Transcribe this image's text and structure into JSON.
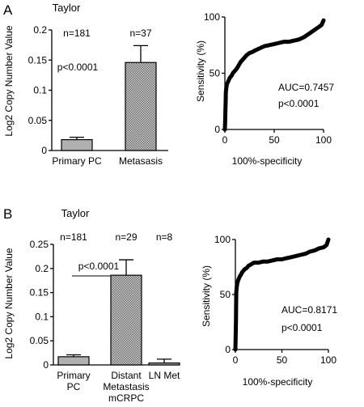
{
  "panel_a": {
    "label": "A",
    "title": "Taylor",
    "bar_chart": {
      "type": "bar",
      "categories": [
        "Primary PC",
        "Metasasis"
      ],
      "category_lines": [
        [
          "Primary PC"
        ],
        [
          "Metasasis"
        ]
      ],
      "values": [
        0.018,
        0.146
      ],
      "errors": [
        0.004,
        0.028
      ],
      "counts": [
        "n=181",
        "n=37"
      ],
      "pvalue": "p<0.0001",
      "ylabel": "Log2 Copy Number Value",
      "ylim": [
        0,
        0.2
      ],
      "yticks": [
        "0",
        "0.05",
        "0.1",
        "0.15",
        "0.2"
      ],
      "ytick_values": [
        0,
        0.05,
        0.1,
        0.15,
        0.2
      ],
      "colors": [
        "#b0b0b0",
        "#9a9a9a"
      ]
    },
    "roc_chart": {
      "type": "line",
      "xlabel": "100%-specificity",
      "ylabel": "Sensitivity (%)",
      "xlim": [
        0,
        100
      ],
      "ylim": [
        0,
        100
      ],
      "xticks": [
        "0",
        "50",
        "100"
      ],
      "xtick_values": [
        0,
        50,
        100
      ],
      "yticks": [
        "0",
        "50",
        "100"
      ],
      "ytick_values": [
        0,
        50,
        100
      ],
      "auc": "AUC=0.7457",
      "pvalue": "p<0.0001",
      "x": [
        0,
        0.3,
        0.6,
        0.8,
        1,
        1.5,
        2,
        3,
        4,
        5,
        6,
        7,
        8,
        9,
        10,
        12,
        14,
        16,
        18,
        20,
        22,
        25,
        28,
        30,
        35,
        40,
        45,
        50,
        55,
        60,
        65,
        70,
        75,
        80,
        85,
        90,
        95,
        98,
        100
      ],
      "y": [
        0,
        8,
        18,
        25,
        33,
        37,
        40,
        42,
        44,
        46,
        47,
        48,
        50,
        51,
        52,
        54,
        57,
        60,
        62,
        64,
        66,
        68,
        69,
        70,
        72,
        74,
        75,
        76,
        77,
        78,
        78,
        79,
        80,
        82,
        85,
        88,
        91,
        93,
        97
      ]
    }
  },
  "panel_b": {
    "label": "B",
    "title": "Taylor",
    "bar_chart": {
      "type": "bar",
      "categories": [
        "Primary PC",
        "Distant Metastasis mCRPC",
        "LN Met"
      ],
      "category_lines": [
        [
          "Primary",
          "PC"
        ],
        [
          "Distant",
          "Metastasis",
          "mCRPC"
        ],
        [
          "LN Met"
        ]
      ],
      "values": [
        0.017,
        0.186,
        0.004
      ],
      "errors": [
        0.004,
        0.032,
        0.008
      ],
      "counts": [
        "n=181",
        "n=29",
        "n=8"
      ],
      "pvalue": "p<0.0001",
      "ylabel": "Log2 Copy Number Value",
      "ylim": [
        0,
        0.25
      ],
      "yticks": [
        "0",
        "0.05",
        "0.1",
        "0.15",
        "0.2",
        "0.25"
      ],
      "ytick_values": [
        0,
        0.05,
        0.1,
        0.15,
        0.2,
        0.25
      ],
      "colors": [
        "#b0b0b0",
        "#9a9a9a",
        "#b0b0b0"
      ]
    },
    "roc_chart": {
      "type": "line",
      "xlabel": "100%-specificity",
      "ylabel": "Sensitivity (%)",
      "xlim": [
        0,
        100
      ],
      "ylim": [
        0,
        100
      ],
      "xticks": [
        "0",
        "50",
        "100"
      ],
      "xtick_values": [
        0,
        50,
        100
      ],
      "yticks": [
        "0",
        "50",
        "100"
      ],
      "ytick_values": [
        0,
        50,
        100
      ],
      "auc": "AUC=0.8171",
      "pvalue": "p<0.0001",
      "x": [
        0,
        0.3,
        0.6,
        0.8,
        1,
        1.5,
        2,
        3,
        4,
        5,
        6,
        7,
        8,
        9,
        10,
        12,
        14,
        16,
        18,
        20,
        25,
        30,
        35,
        40,
        45,
        50,
        55,
        60,
        65,
        70,
        75,
        80,
        85,
        90,
        95,
        98,
        100
      ],
      "y": [
        0,
        10,
        25,
        40,
        52,
        57,
        60,
        63,
        65,
        67,
        68,
        70,
        71,
        72,
        73,
        74,
        76,
        77,
        78,
        79,
        79,
        80,
        80,
        81,
        82,
        82,
        83,
        84,
        85,
        86,
        87,
        89,
        90,
        92,
        93,
        95,
        100
      ]
    }
  }
}
